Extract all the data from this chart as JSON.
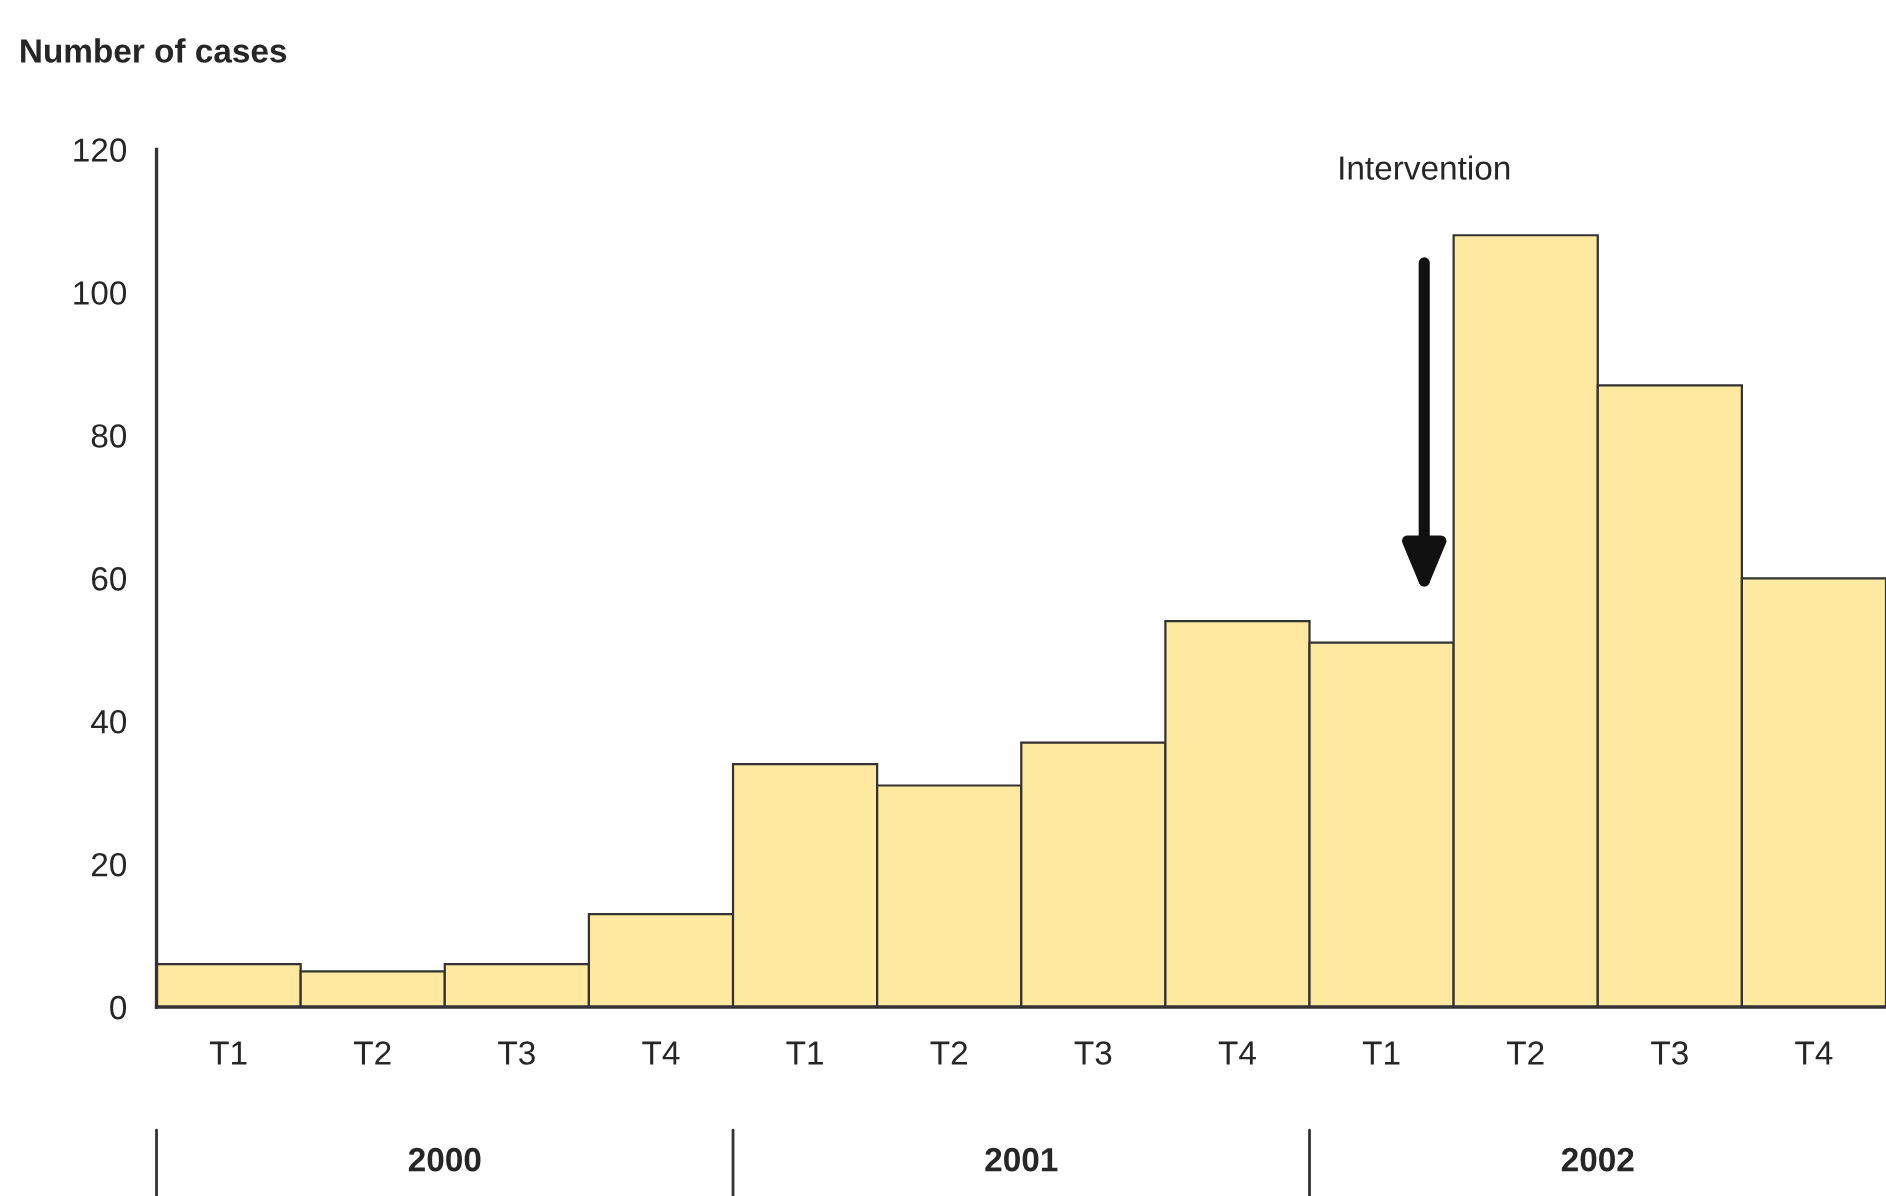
{
  "chart_data": {
    "type": "bar",
    "ylabel": "Number of cases",
    "categories": [
      "T1",
      "T2",
      "T3",
      "T4",
      "T1",
      "T2",
      "T3",
      "T4",
      "T1",
      "T2",
      "T3",
      "T4"
    ],
    "values": [
      6,
      5,
      6,
      13,
      34,
      31,
      37,
      54,
      51,
      108,
      87,
      60
    ],
    "color": "#fde9a0",
    "ylim": [
      0,
      120
    ],
    "yticks": [
      0,
      20,
      40,
      60,
      80,
      100,
      120
    ],
    "grid": false,
    "annotations": [
      "Intervention",
      "2000",
      "2001",
      "2002"
    ]
  }
}
